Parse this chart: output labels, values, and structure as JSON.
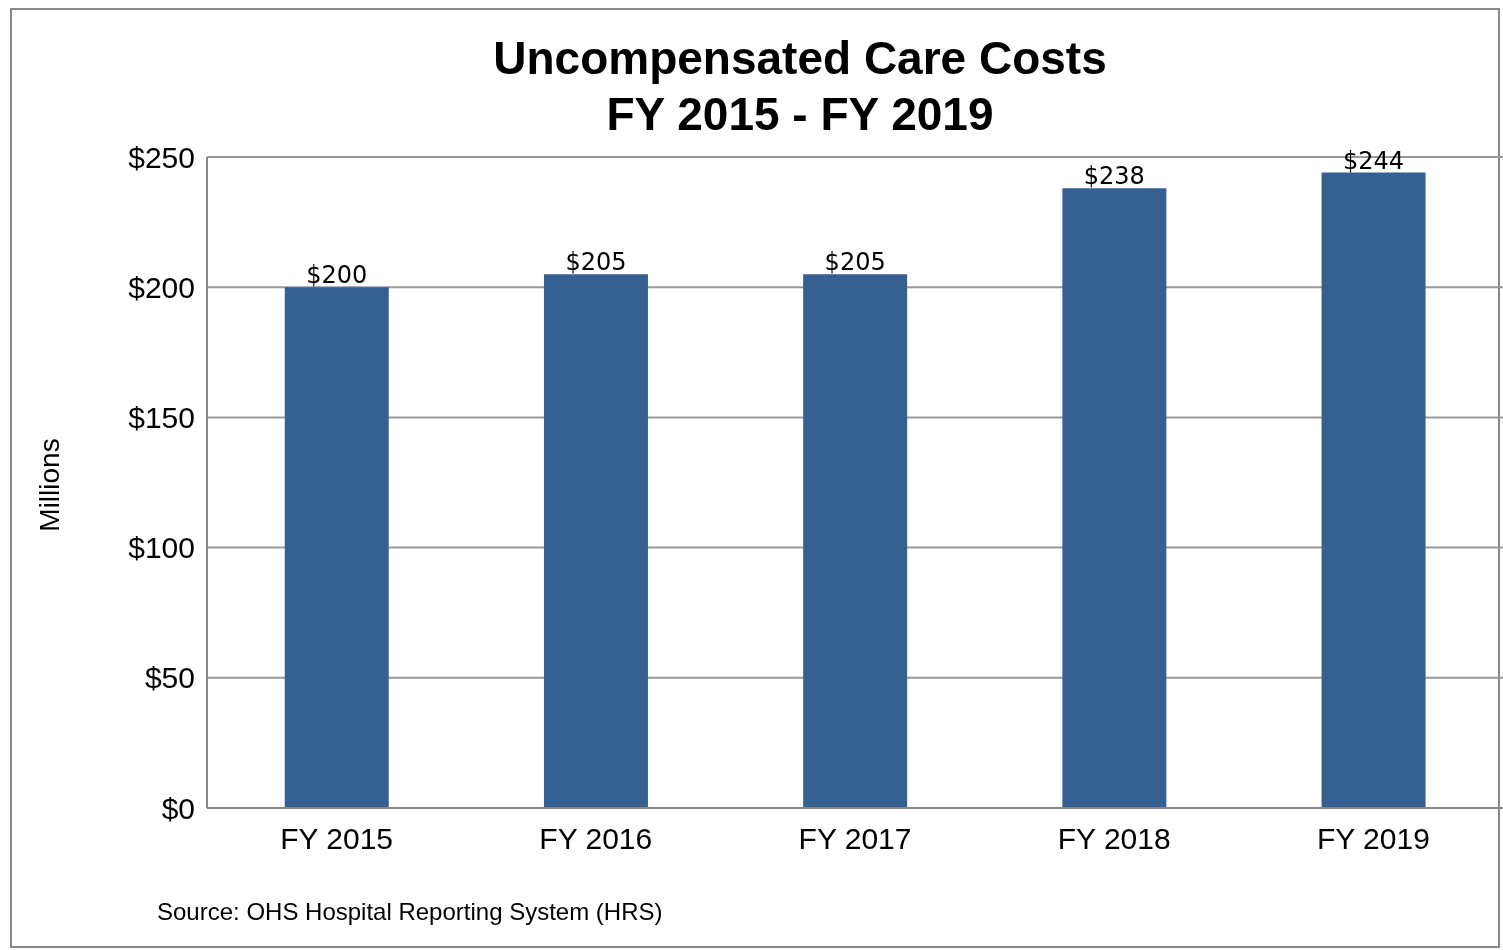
{
  "chart_data": {
    "type": "bar",
    "title": "Uncompensated Care Costs",
    "subtitle": "FY 2015 - FY 2019",
    "ylabel": "Millions",
    "categories": [
      "FY 2015",
      "FY 2016",
      "FY 2017",
      "FY 2018",
      "FY 2019"
    ],
    "values": [
      200,
      205,
      205,
      238,
      244
    ],
    "color": "#376092",
    "value_labels": [
      "$200",
      "$205",
      "$205",
      "$238",
      "$244"
    ],
    "ylim": [
      0,
      250
    ],
    "yticks": [
      {
        "value": 0,
        "label": "$0"
      },
      {
        "value": 50,
        "label": "$50"
      },
      {
        "value": 100,
        "label": "$100"
      },
      {
        "value": 150,
        "label": "$150"
      },
      {
        "value": 200,
        "label": "$200"
      },
      {
        "value": 250,
        "label": "$250"
      }
    ],
    "grid": "y",
    "annotations": [
      "Source: OHS Hospital Reporting System (HRS)"
    ]
  }
}
